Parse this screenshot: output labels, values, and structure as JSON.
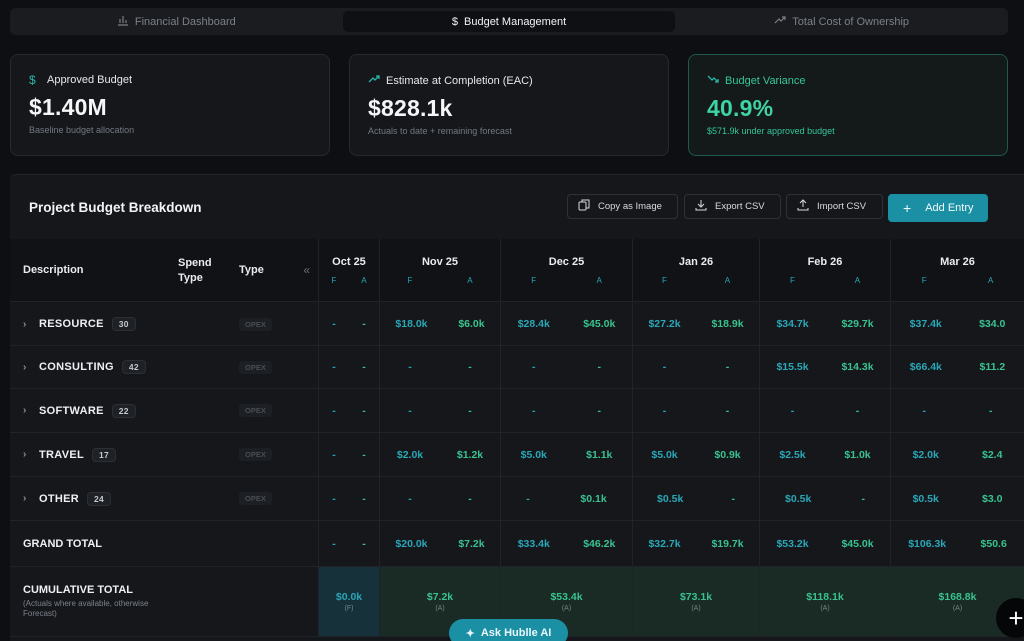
{
  "tabs": [
    {
      "label": "Financial Dashboard",
      "icon": "bar-chart-icon"
    },
    {
      "label": "Budget Management",
      "icon": "dollar-icon"
    },
    {
      "label": "Total Cost of Ownership",
      "icon": "trending-up-icon"
    }
  ],
  "cards": [
    {
      "title": "Approved Budget",
      "value": "$1.40M",
      "sub": "Baseline budget allocation",
      "icon": "dollar-icon"
    },
    {
      "title": "Estimate at Completion (EAC)",
      "value": "$828.1k",
      "sub": "Actuals to date + remaining forecast",
      "icon": "trending-up-icon"
    },
    {
      "title": "Budget Variance",
      "value": "40.9%",
      "sub": "$571.9k under approved budget",
      "icon": "trending-down-icon"
    }
  ],
  "panel": {
    "title": "Project Budget Breakdown",
    "copy_label": "Copy as Image",
    "export_label": "Export CSV",
    "import_label": "Import CSV",
    "add_label": "Add Entry"
  },
  "table": {
    "headers": {
      "description": "Description",
      "spend_type_1": "Spend",
      "spend_type_2": "Type",
      "type": "Type",
      "f": "F",
      "a": "A"
    },
    "months": [
      "Oct 25",
      "Nov 25",
      "Dec 25",
      "Jan 26",
      "Feb 26",
      "Mar 26"
    ],
    "rows": [
      {
        "name": "RESOURCE",
        "count": "30",
        "type": "OPEX",
        "cells": [
          [
            "-",
            "-"
          ],
          [
            "$18.0k",
            "$6.0k"
          ],
          [
            "$28.4k",
            "$45.0k"
          ],
          [
            "$27.2k",
            "$18.9k"
          ],
          [
            "$34.7k",
            "$29.7k"
          ],
          [
            "$37.4k",
            "$34.0"
          ]
        ]
      },
      {
        "name": "CONSULTING",
        "count": "42",
        "type": "OPEX",
        "cells": [
          [
            "-",
            "-"
          ],
          [
            "-",
            "-"
          ],
          [
            "-",
            "-"
          ],
          [
            "-",
            "-"
          ],
          [
            "$15.5k",
            "$14.3k"
          ],
          [
            "$66.4k",
            "$11.2"
          ]
        ]
      },
      {
        "name": "SOFTWARE",
        "count": "22",
        "type": "OPEX",
        "cells": [
          [
            "-",
            "-"
          ],
          [
            "-",
            "-"
          ],
          [
            "-",
            "-"
          ],
          [
            "-",
            "-"
          ],
          [
            "-",
            "-"
          ],
          [
            "-",
            "-"
          ]
        ]
      },
      {
        "name": "TRAVEL",
        "count": "17",
        "type": "OPEX",
        "cells": [
          [
            "-",
            "-"
          ],
          [
            "$2.0k",
            "$1.2k"
          ],
          [
            "$5.0k",
            "$1.1k"
          ],
          [
            "$5.0k",
            "$0.9k"
          ],
          [
            "$2.5k",
            "$1.0k"
          ],
          [
            "$2.0k",
            "$2.4"
          ]
        ]
      },
      {
        "name": "OTHER",
        "count": "24",
        "type": "OPEX",
        "cells": [
          [
            "-",
            "-"
          ],
          [
            "-",
            "-"
          ],
          [
            "-",
            "$0.1k"
          ],
          [
            "$0.5k",
            "-"
          ],
          [
            "$0.5k",
            "-"
          ],
          [
            "$0.5k",
            "$3.0"
          ]
        ]
      }
    ],
    "grand_total": {
      "label": "GRAND TOTAL",
      "cells": [
        [
          "-",
          "-"
        ],
        [
          "$20.0k",
          "$7.2k"
        ],
        [
          "$33.4k",
          "$46.2k"
        ],
        [
          "$32.7k",
          "$19.7k"
        ],
        [
          "$53.2k",
          "$45.0k"
        ],
        [
          "$106.3k",
          "$50.6"
        ]
      ]
    },
    "cumulative": {
      "label": "CUMULATIVE TOTAL",
      "sub": "(Actuals where available, otherwise Forecast)",
      "cells": [
        {
          "value": "$0.0k",
          "tag": "(F)"
        },
        {
          "value": "$7.2k",
          "tag": "(A)"
        },
        {
          "value": "$53.4k",
          "tag": "(A)"
        },
        {
          "value": "$73.1k",
          "tag": "(A)"
        },
        {
          "value": "$118.1k",
          "tag": "(A)"
        },
        {
          "value": "$168.8k",
          "tag": "(A)"
        }
      ]
    }
  },
  "ask_label": "Ask Hublle AI",
  "colors": {
    "accent": "#1b8fa3",
    "forecast": "#2aa7b7",
    "actual": "#39c28f",
    "variance": "#3fd3a3"
  }
}
